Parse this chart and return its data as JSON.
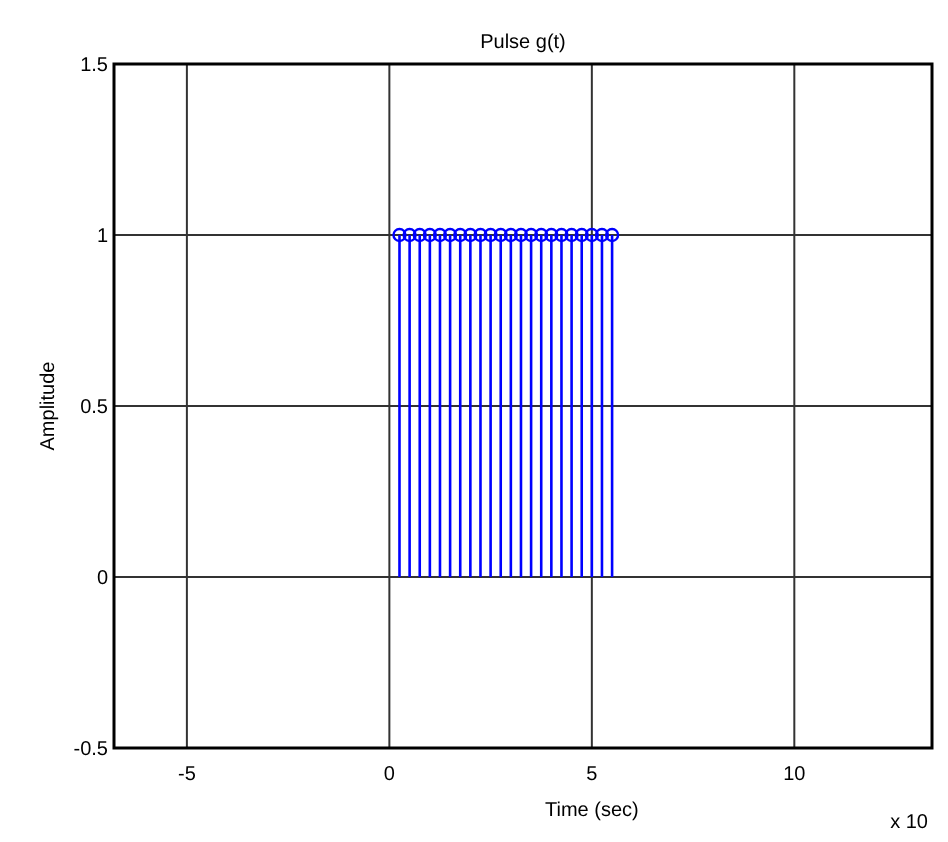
{
  "chart_data": {
    "type": "lollipop",
    "title": "Pulse g(t)",
    "xlabel": "Time (sec)",
    "ylabel": "Amplitude",
    "annotations": [
      "x 10"
    ],
    "x": [
      0.25,
      0.5,
      0.75,
      1,
      1.25,
      1.5,
      1.75,
      2,
      2.25,
      2.5,
      2.75,
      3,
      3.25,
      3.5,
      3.75,
      4,
      4.25,
      4.5,
      4.75,
      5,
      5.25,
      5.5
    ],
    "values": [
      1,
      1,
      1,
      1,
      1,
      1,
      1,
      1,
      1,
      1,
      1,
      1,
      1,
      1,
      1,
      1,
      1,
      1,
      1,
      1,
      1,
      1
    ],
    "color": "#0000ff",
    "marker": "circle",
    "grid": true,
    "xlim": [
      -6.8,
      13.4
    ],
    "xticks": [
      -5,
      0,
      5,
      10
    ],
    "ylim": [
      -0.5,
      1.5
    ],
    "yticks": [
      -0.5,
      0,
      0.5,
      1,
      1.5
    ]
  }
}
